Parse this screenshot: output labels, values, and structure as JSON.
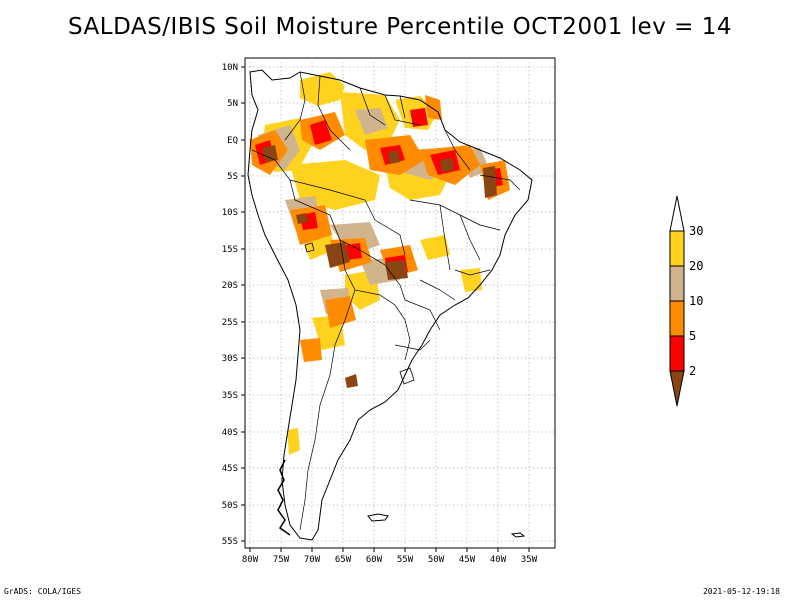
{
  "title": "SALDAS/IBIS Soil Moisture Percentile OCT2001 lev = 14",
  "footer": {
    "left": "GrADS: COLA/IGES",
    "right": "2021-05-12-19:18"
  },
  "axes": {
    "lat_labels": [
      "10N",
      "5N",
      "EQ",
      "5S",
      "10S",
      "15S",
      "20S",
      "25S",
      "30S",
      "35S",
      "40S",
      "45S",
      "50S",
      "55S"
    ],
    "lon_labels": [
      "80W",
      "75W",
      "70W",
      "65W",
      "60W",
      "55W",
      "50W",
      "45W",
      "40W",
      "35W"
    ]
  },
  "colorbar": {
    "labels": [
      "30",
      "20",
      "10",
      "5",
      "2"
    ],
    "colors": {
      "over30": "#ffffff",
      "c20_30": "#ffd21f",
      "c10_20": "#d2b48c",
      "c5_10": "#ff8c00",
      "c2_5": "#ff0000",
      "under2": "#8b4513"
    }
  }
}
